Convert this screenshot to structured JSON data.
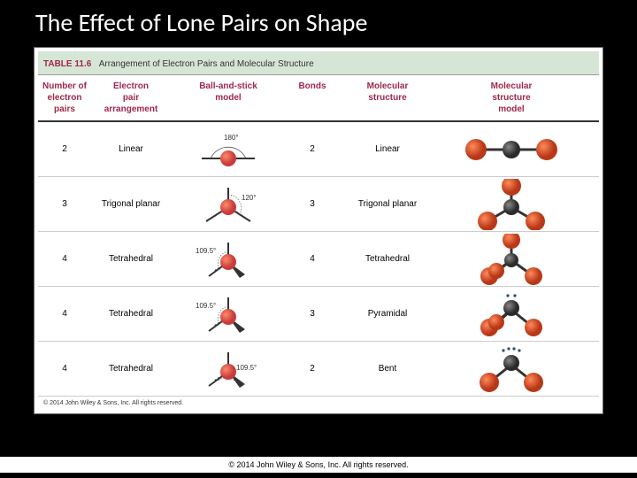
{
  "title": "The Effect of Lone Pairs on Shape",
  "table": {
    "label": "TABLE 11.6",
    "caption": "Arrangement of Electron Pairs and Molecular Structure",
    "headers": {
      "h1": "Number of\nelectron\npairs",
      "h2": "Electron\npair\narrangement",
      "h3": "Ball-and-stick\nmodel",
      "h4": "Bonds",
      "h5": "Molecular\nstructure",
      "h6": "Molecular\nstructure\nmodel"
    },
    "rows": [
      {
        "pairs": "2",
        "arrangement": "Linear",
        "angle": "180°",
        "bonds": "2",
        "structure": "Linear"
      },
      {
        "pairs": "3",
        "arrangement": "Trigonal planar",
        "angle": "120°",
        "bonds": "3",
        "structure": "Trigonal planar"
      },
      {
        "pairs": "4",
        "arrangement": "Tetrahedral",
        "angle": "109.5°",
        "bonds": "4",
        "structure": "Tetrahedral"
      },
      {
        "pairs": "4",
        "arrangement": "Tetrahedral",
        "angle": "109.5°",
        "bonds": "3",
        "structure": "Pyramidal"
      },
      {
        "pairs": "4",
        "arrangement": "Tetrahedral",
        "angle": "109.5°",
        "bonds": "2",
        "structure": "Bent"
      }
    ]
  },
  "colors": {
    "central_atom": "#c83c3c",
    "central_shade": "#7a1f1f",
    "outer_atom": "#d84a2a",
    "outer_shade": "#8a2818",
    "model_central": "#3a3a3a",
    "model_outer": "#d84a2a",
    "bond": "#333333",
    "lonepair": "#2a4a6a",
    "angle_arc": "#555555",
    "angle_text": "#333333"
  },
  "copyright_inner": "© 2014 John Wiley & Sons, Inc. All rights reserved.",
  "copyright_outer": "© 2014 John Wiley & Sons, Inc. All rights reserved."
}
